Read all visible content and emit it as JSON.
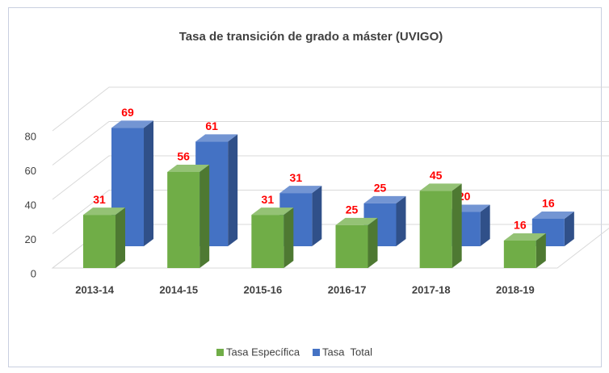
{
  "chart_data": {
    "type": "bar3d",
    "title": "Tasa de transición de grado a máster (UVIGO)",
    "categories": [
      "2013-14",
      "2014-15",
      "2015-16",
      "2016-17",
      "2017-18",
      "2018-19"
    ],
    "series": [
      {
        "name": "Tasa Específica",
        "color": "#70ad47",
        "values": [
          31,
          56,
          31,
          25,
          45,
          16
        ]
      },
      {
        "name": "Tasa  Total",
        "color": "#4472c4",
        "values": [
          69,
          61,
          31,
          25,
          20,
          16
        ]
      }
    ],
    "ylim": [
      0,
      80
    ],
    "yticks": [
      0,
      20,
      40,
      60,
      80
    ],
    "grid": true,
    "legend": "bottom"
  }
}
